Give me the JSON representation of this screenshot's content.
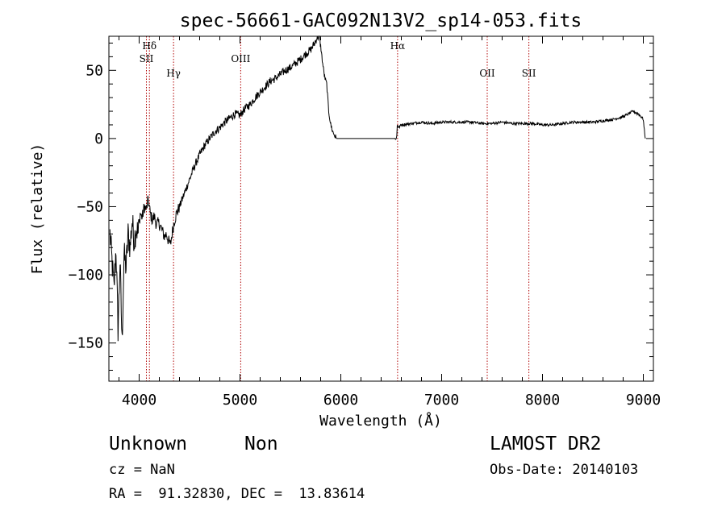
{
  "chart_data": {
    "type": "line",
    "title": "spec-56661-GAC092N13V2_sp14-053.fits",
    "xlabel": "Wavelength (Å)",
    "ylabel": "Flux (relative)",
    "xlim": [
      3700,
      9100
    ],
    "ylim": [
      -178,
      75
    ],
    "xticks": [
      "4000",
      "5000",
      "6000",
      "7000",
      "8000",
      "9000"
    ],
    "yticks": [
      "50",
      "0",
      "−50",
      "−100",
      "−150"
    ],
    "line_color": "#000000",
    "marker_color": "#b00000",
    "grid": false,
    "legend": "none",
    "line_markers": [
      {
        "label": "Hδ",
        "x": 4102
      },
      {
        "label": "SII",
        "x": 4072
      },
      {
        "label": "Hγ",
        "x": 4341
      },
      {
        "label": "OIII",
        "x": 5007
      },
      {
        "label": "Hα",
        "x": 6563
      },
      {
        "label": "OII",
        "x": 7452
      },
      {
        "label": "SII",
        "x": 7865
      }
    ],
    "series": [
      {
        "x": [
          3710,
          3730,
          3750,
          3770,
          3790,
          3810,
          3830,
          3850,
          3870,
          3890,
          3910,
          3930,
          3950,
          3970,
          3990,
          4010,
          4030,
          4050,
          4070,
          4090,
          4110,
          4130,
          4150,
          4170,
          4190,
          4210,
          4230,
          4250,
          4270,
          4290,
          4310,
          4330,
          4350,
          4370,
          4400,
          4450,
          4500,
          4550,
          4600,
          4650,
          4700,
          4750,
          4800,
          4850,
          4900,
          4950,
          5000,
          5050,
          5100,
          5150,
          5200,
          5250,
          5300,
          5350,
          5400,
          5450,
          5500,
          5550,
          5600,
          5650,
          5700,
          5740,
          5770,
          5790,
          5800,
          5820,
          5840,
          5860,
          5880,
          5900,
          5920,
          5940,
          5960,
          6000,
          6100,
          6200,
          6300,
          6400,
          6500,
          6550,
          6555,
          6560,
          6575,
          6600,
          6700,
          6800,
          6900,
          7000,
          7100,
          7200,
          7300,
          7400,
          7500,
          7600,
          7700,
          7800,
          7900,
          8000,
          8100,
          8200,
          8300,
          8400,
          8500,
          8600,
          8700,
          8800,
          8850,
          8900,
          8950,
          8980,
          9000,
          9010,
          9020
        ],
        "y": [
          -70,
          -90,
          -110,
          -80,
          -140,
          -90,
          -150,
          -85,
          -95,
          -70,
          -80,
          -60,
          -75,
          -65,
          -70,
          -55,
          -58,
          -50,
          -52,
          -45,
          -55,
          -60,
          -57,
          -63,
          -62,
          -64,
          -68,
          -72,
          -70,
          -75,
          -78,
          -68,
          -60,
          -55,
          -50,
          -40,
          -30,
          -20,
          -12,
          -5,
          0,
          5,
          8,
          12,
          15,
          18,
          17,
          22,
          25,
          30,
          34,
          38,
          42,
          44,
          47,
          50,
          52,
          55,
          58,
          62,
          65,
          70,
          75,
          72,
          68,
          55,
          45,
          40,
          20,
          10,
          5,
          2,
          0,
          0,
          0,
          0,
          0,
          0,
          0,
          0,
          2,
          10,
          8,
          10,
          11,
          12,
          11,
          12,
          12,
          12,
          12,
          11,
          11,
          12,
          11,
          11,
          11,
          10,
          10,
          11,
          12,
          12,
          12,
          13,
          14,
          16,
          18,
          20,
          18,
          16,
          14,
          6,
          0
        ]
      }
    ]
  },
  "info": {
    "class": "Unknown",
    "subclass": "Non",
    "survey": "LAMOST DR2",
    "cz": "cz = NaN",
    "obs_date": "Obs-Date: 20140103",
    "radec": "RA =  91.32830, DEC =  13.83614"
  }
}
